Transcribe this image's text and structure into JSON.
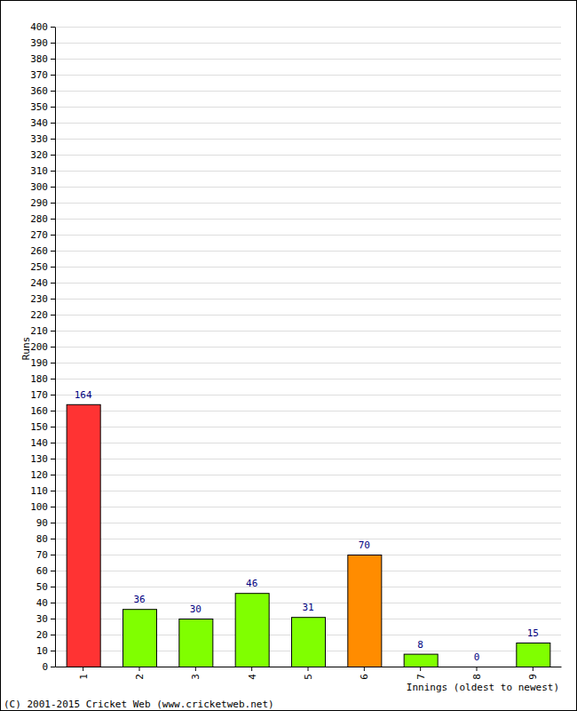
{
  "chart_data": {
    "type": "bar",
    "x_label": "Innings (oldest to newest)",
    "y_label": "Runs",
    "annotations": [
      "(C) 2001-2015 Cricket Web (www.cricketweb.net)"
    ],
    "categories": [
      "1",
      "2",
      "3",
      "4",
      "5",
      "6",
      "7",
      "8",
      "9"
    ],
    "values": [
      164,
      36,
      30,
      46,
      31,
      70,
      8,
      0,
      15
    ],
    "colors": [
      "#ff3333",
      "#80ff00",
      "#80ff00",
      "#80ff00",
      "#80ff00",
      "#ff8c00",
      "#80ff00",
      "#80ff00",
      "#80ff00"
    ],
    "ylim": [
      0,
      400
    ],
    "yticks": [
      0,
      10,
      20,
      30,
      40,
      50,
      60,
      70,
      80,
      90,
      100,
      110,
      120,
      130,
      140,
      150,
      160,
      170,
      180,
      190,
      200,
      210,
      220,
      230,
      240,
      250,
      260,
      270,
      280,
      290,
      300,
      310,
      320,
      330,
      340,
      350,
      360,
      370,
      380,
      390,
      400
    ],
    "grid": true,
    "data_labels": true
  }
}
